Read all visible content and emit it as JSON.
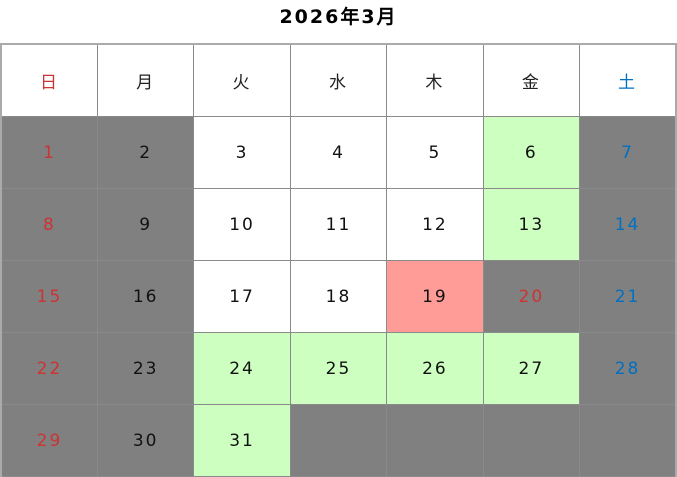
{
  "title": "2026年3月",
  "colors": {
    "closed": "#808080",
    "open": "#ffffff",
    "highlight": "#ccffc0",
    "today": "#ff9c97",
    "sunday_text": "#cc3333",
    "saturday_text": "#0070c0",
    "weekday_text": "#111111"
  },
  "weekdays": [
    "日",
    "月",
    "火",
    "水",
    "木",
    "金",
    "土"
  ],
  "weeks": [
    [
      {
        "day": "1",
        "type": "closed"
      },
      {
        "day": "2",
        "type": "closed"
      },
      {
        "day": "3",
        "type": "open"
      },
      {
        "day": "4",
        "type": "open"
      },
      {
        "day": "5",
        "type": "open"
      },
      {
        "day": "6",
        "type": "highlight"
      },
      {
        "day": "7",
        "type": "closed"
      }
    ],
    [
      {
        "day": "8",
        "type": "closed"
      },
      {
        "day": "9",
        "type": "closed"
      },
      {
        "day": "10",
        "type": "open"
      },
      {
        "day": "11",
        "type": "open"
      },
      {
        "day": "12",
        "type": "open"
      },
      {
        "day": "13",
        "type": "highlight"
      },
      {
        "day": "14",
        "type": "closed"
      }
    ],
    [
      {
        "day": "15",
        "type": "closed"
      },
      {
        "day": "16",
        "type": "closed"
      },
      {
        "day": "17",
        "type": "open"
      },
      {
        "day": "18",
        "type": "open"
      },
      {
        "day": "19",
        "type": "today"
      },
      {
        "day": "20",
        "type": "closed",
        "holiday": true
      },
      {
        "day": "21",
        "type": "closed"
      }
    ],
    [
      {
        "day": "22",
        "type": "closed"
      },
      {
        "day": "23",
        "type": "closed"
      },
      {
        "day": "24",
        "type": "highlight"
      },
      {
        "day": "25",
        "type": "highlight"
      },
      {
        "day": "26",
        "type": "highlight"
      },
      {
        "day": "27",
        "type": "highlight"
      },
      {
        "day": "28",
        "type": "closed"
      }
    ],
    [
      {
        "day": "29",
        "type": "closed"
      },
      {
        "day": "30",
        "type": "closed"
      },
      {
        "day": "31",
        "type": "highlight"
      },
      {
        "day": "",
        "type": "closed"
      },
      {
        "day": "",
        "type": "closed"
      },
      {
        "day": "",
        "type": "closed"
      },
      {
        "day": "",
        "type": "closed"
      }
    ]
  ]
}
